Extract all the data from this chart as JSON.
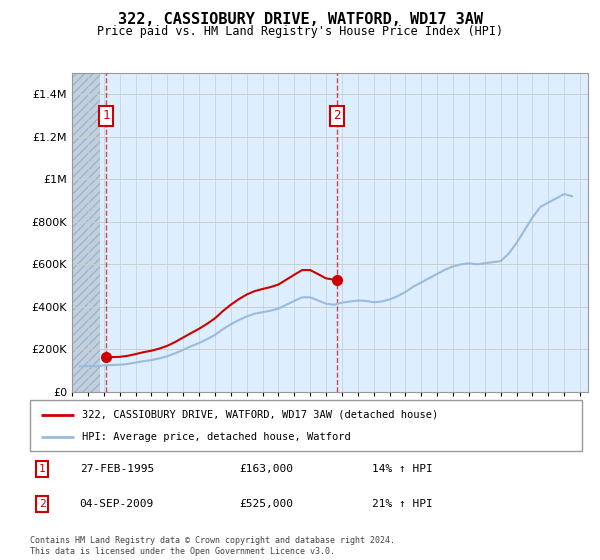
{
  "title": "322, CASSIOBURY DRIVE, WATFORD, WD17 3AW",
  "subtitle": "Price paid vs. HM Land Registry's House Price Index (HPI)",
  "legend_line1": "322, CASSIOBURY DRIVE, WATFORD, WD17 3AW (detached house)",
  "legend_line2": "HPI: Average price, detached house, Watford",
  "transaction1": {
    "label": "1",
    "date_num": 1995.15,
    "price": 163000,
    "hpi_pct": "14% ↑ HPI",
    "date_str": "27-FEB-1995",
    "price_str": "£163,000"
  },
  "transaction2": {
    "label": "2",
    "date_num": 2009.67,
    "price": 525000,
    "hpi_pct": "21% ↑ HPI",
    "date_str": "04-SEP-2009",
    "price_str": "£525,000"
  },
  "ylim": [
    0,
    1500000
  ],
  "xlim": [
    1993,
    2025.5
  ],
  "yticks": [
    0,
    200000,
    400000,
    600000,
    800000,
    1000000,
    1200000,
    1400000
  ],
  "ytick_labels": [
    "£0",
    "£200K",
    "£400K",
    "£600K",
    "£800K",
    "£1M",
    "£1.2M",
    "£1.4M"
  ],
  "bg_color": "#ddeeff",
  "grid_color": "#cccccc",
  "red_color": "#cc0000",
  "blue_color": "#99bbdd",
  "footer": "Contains HM Land Registry data © Crown copyright and database right 2024.\nThis data is licensed under the Open Government Licence v3.0.",
  "hpi_data": {
    "years": [
      1993.5,
      1994.0,
      1994.5,
      1995.0,
      1995.5,
      1996.0,
      1996.5,
      1997.0,
      1997.5,
      1998.0,
      1998.5,
      1999.0,
      1999.5,
      2000.0,
      2000.5,
      2001.0,
      2001.5,
      2002.0,
      2002.5,
      2003.0,
      2003.5,
      2004.0,
      2004.5,
      2005.0,
      2005.5,
      2006.0,
      2006.5,
      2007.0,
      2007.5,
      2008.0,
      2008.5,
      2009.0,
      2009.5,
      2010.0,
      2010.5,
      2011.0,
      2011.5,
      2012.0,
      2012.5,
      2013.0,
      2013.5,
      2014.0,
      2014.5,
      2015.0,
      2015.5,
      2016.0,
      2016.5,
      2017.0,
      2017.5,
      2018.0,
      2018.5,
      2019.0,
      2019.5,
      2020.0,
      2020.5,
      2021.0,
      2021.5,
      2022.0,
      2022.5,
      2023.0,
      2023.5,
      2024.0,
      2024.5
    ],
    "values": [
      120000,
      122000,
      121000,
      125000,
      127000,
      128000,
      132000,
      138000,
      145000,
      150000,
      158000,
      168000,
      182000,
      198000,
      215000,
      230000,
      248000,
      268000,
      295000,
      318000,
      338000,
      355000,
      368000,
      375000,
      382000,
      392000,
      410000,
      428000,
      445000,
      445000,
      430000,
      415000,
      410000,
      420000,
      425000,
      430000,
      428000,
      422000,
      425000,
      435000,
      450000,
      470000,
      495000,
      515000,
      535000,
      555000,
      575000,
      590000,
      600000,
      605000,
      600000,
      605000,
      610000,
      615000,
      650000,
      700000,
      760000,
      820000,
      870000,
      890000,
      910000,
      930000,
      920000
    ]
  },
  "property_data": {
    "connected_years": [
      1995.15,
      1995.5,
      1996.0,
      1996.5,
      1997.0,
      1997.5,
      1998.0,
      1998.5,
      1999.0,
      1999.5,
      2000.0,
      2000.5,
      2001.0,
      2001.5,
      2002.0,
      2002.5,
      2003.0,
      2003.5,
      2004.0,
      2004.5,
      2005.0,
      2005.5,
      2006.0,
      2006.5,
      2007.0,
      2007.5,
      2008.0,
      2008.5,
      2009.0,
      2009.5,
      2009.67
    ],
    "connected_values": [
      163000,
      164000,
      165000,
      170000,
      178000,
      187000,
      194000,
      204000,
      217000,
      235000,
      256000,
      277000,
      297000,
      320000,
      346000,
      380000,
      410000,
      436000,
      458000,
      474000,
      484000,
      493000,
      505000,
      528000,
      551000,
      573000,
      573000,
      554000,
      534000,
      528000,
      525000
    ]
  }
}
